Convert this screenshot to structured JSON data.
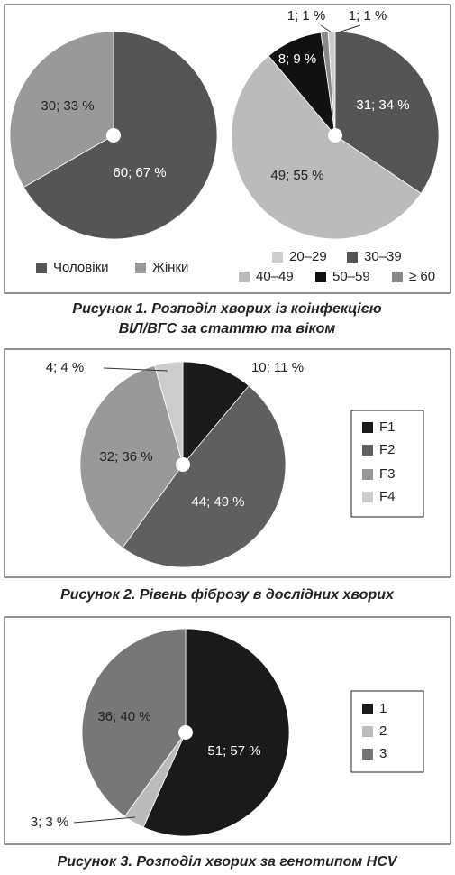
{
  "chart_data": [
    {
      "type": "pie",
      "title": [
        "Рисунок 1.  Розподіл хворих із коінфекцією",
        "ВІЛ/ВГС за статтю та віком"
      ],
      "categories": [
        "Чоловіки",
        "Жінки"
      ],
      "values": [
        60,
        30
      ],
      "value_labels": [
        "60; 67 %",
        "30; 33 %"
      ],
      "colors": [
        "#555555",
        "#999999"
      ]
    },
    {
      "type": "pie",
      "categories": [
        "20–29",
        "30–39",
        "40–49",
        "50–59",
        "≥ 60"
      ],
      "values": [
        1,
        31,
        49,
        8,
        1
      ],
      "value_labels": [
        "1; 1 %",
        "31; 34 %",
        "49; 55 %",
        "8; 9 %",
        "1; 1 %"
      ],
      "colors": [
        "#cccccc",
        "#555555",
        "#bbbbbb",
        "#111111",
        "#888888"
      ]
    },
    {
      "type": "pie",
      "title": "Рисунок 2.  Рівень фіброзу в дослідних хворих",
      "categories": [
        "F1",
        "F2",
        "F3",
        "F4"
      ],
      "values": [
        10,
        44,
        32,
        4
      ],
      "value_labels": [
        "10; 11 %",
        "44; 49 %",
        "32; 36 %",
        "4; 4 %"
      ],
      "colors": [
        "#1a1a1a",
        "#5f5f5f",
        "#999999",
        "#cccccc"
      ]
    },
    {
      "type": "pie",
      "title": "Рисунок 3.  Розподіл хворих за генотипом HCV",
      "categories": [
        "1",
        "2",
        "3"
      ],
      "values": [
        51,
        3,
        36
      ],
      "value_labels": [
        "51; 57 %",
        "3; 3 %",
        "36; 40 %"
      ],
      "colors": [
        "#1a1a1a",
        "#bbbbbb",
        "#777777"
      ]
    }
  ]
}
